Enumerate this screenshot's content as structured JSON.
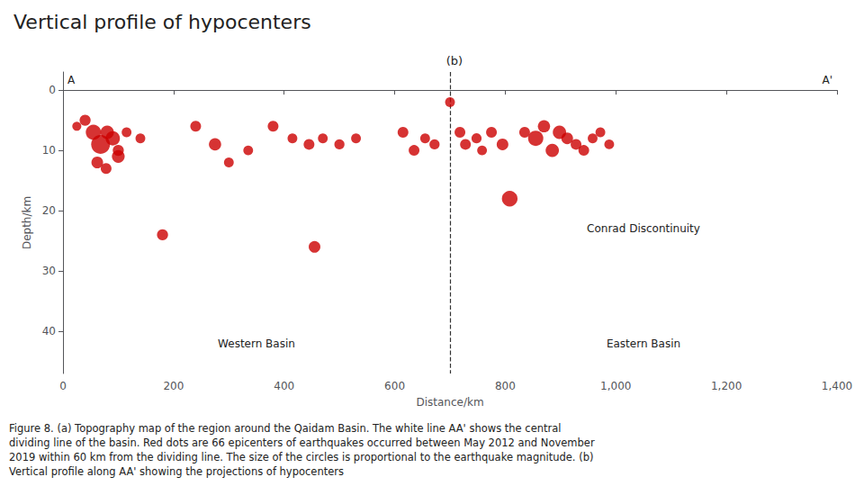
{
  "chart_data": {
    "type": "scatter",
    "title": "Vertical profile of hypocenters",
    "subtitle": "(b)",
    "xlabel": "Distance/km",
    "ylabel": "Depth/km",
    "x": [
      25,
      40,
      55,
      68,
      80,
      90,
      100,
      115,
      62,
      78,
      100,
      140,
      180,
      240,
      275,
      300,
      335,
      380,
      415,
      445,
      470,
      500,
      530,
      455,
      615,
      635,
      655,
      672,
      700,
      718,
      728,
      748,
      758,
      775,
      795,
      808,
      835,
      855,
      870,
      885,
      898,
      912,
      928,
      942,
      958,
      972,
      988
    ],
    "y": [
      6,
      5,
      7,
      9,
      7,
      8,
      10,
      7,
      12,
      13,
      11,
      8,
      24,
      6,
      9,
      12,
      10,
      6,
      8,
      9,
      8,
      9,
      8,
      26,
      7,
      10,
      8,
      9,
      2,
      7,
      9,
      8,
      10,
      7,
      9,
      18,
      7,
      8,
      6,
      10,
      7,
      8,
      9,
      10,
      8,
      7,
      9
    ],
    "sizes": [
      60,
      90,
      170,
      260,
      130,
      150,
      90,
      70,
      100,
      85,
      120,
      70,
      90,
      85,
      110,
      70,
      70,
      85,
      70,
      85,
      70,
      75,
      70,
      100,
      85,
      85,
      70,
      75,
      70,
      85,
      85,
      75,
      70,
      85,
      100,
      180,
      85,
      170,
      110,
      130,
      130,
      100,
      85,
      85,
      70,
      70,
      70
    ],
    "color": "#cc0000",
    "xlim": [
      0,
      1400
    ],
    "ylim": [
      47,
      -3
    ],
    "xticks": [
      0,
      200,
      400,
      600,
      800,
      1000,
      1200,
      1400
    ],
    "yticks": [
      0,
      10,
      20,
      30,
      40
    ],
    "grid": false,
    "reference_lines": [
      {
        "x": 700,
        "line_style": "dashed"
      }
    ],
    "annotations": [
      "Western Basin",
      "Eastern Basin",
      "Conrad Discontinuity",
      "A",
      "A'"
    ],
    "caption": [
      "Figure 8. (a) Topography map of the region around the Qaidam Basin. The white line AA' shows the central",
      "dividing line of the basin. Red dots are 66 epicenters of earthquakes occurred between May 2012 and November",
      "2019 within 60 km from the dividing line. The size of the circles is proportional to the earthquake magnitude. (b)",
      "Vertical profile along AA' showing the projections of hypocenters"
    ]
  }
}
